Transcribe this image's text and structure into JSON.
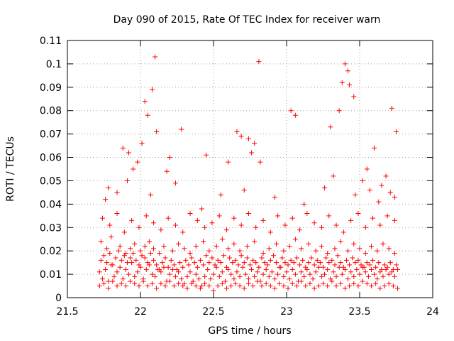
{
  "chart_data": {
    "type": "scatter",
    "title": "Day 090 of 2015, Rate Of TEC Index for receiver warn",
    "xlabel": "GPS time / hours",
    "ylabel": "ROTI / TECUs",
    "xlim": [
      21.5,
      24
    ],
    "ylim": [
      0,
      0.11
    ],
    "x_ticks": [
      {
        "value": 21.5,
        "label": "21.5"
      },
      {
        "value": 22,
        "label": "22"
      },
      {
        "value": 22.5,
        "label": "22.5"
      },
      {
        "value": 23,
        "label": "23"
      },
      {
        "value": 23.5,
        "label": "23.5"
      },
      {
        "value": 24,
        "label": "24"
      }
    ],
    "y_ticks": [
      {
        "value": 0,
        "label": "0"
      },
      {
        "value": 0.01,
        "label": "0.01"
      },
      {
        "value": 0.02,
        "label": "0.02"
      },
      {
        "value": 0.03,
        "label": "0.03"
      },
      {
        "value": 0.04,
        "label": "0.04"
      },
      {
        "value": 0.05,
        "label": "0.05"
      },
      {
        "value": 0.06,
        "label": "0.06"
      },
      {
        "value": 0.07,
        "label": "0.07"
      },
      {
        "value": 0.08,
        "label": "0.08"
      },
      {
        "value": 0.09,
        "label": "0.09"
      },
      {
        "value": 0.1,
        "label": "0.1"
      },
      {
        "value": 0.11,
        "label": "0.11"
      }
    ],
    "grid": true,
    "marker": "plus",
    "color": "#ff0000",
    "series": [
      {
        "name": "ROTI",
        "x": [
          21.72,
          21.74,
          21.76,
          21.78,
          21.8,
          21.82,
          21.84,
          21.86,
          21.88,
          21.9,
          21.92,
          21.94,
          21.96,
          21.98,
          22.0,
          22.02,
          22.04,
          22.06,
          22.08,
          22.1,
          22.12,
          22.14,
          22.16,
          22.18,
          22.2,
          22.22,
          22.24,
          22.26,
          22.28,
          22.3,
          22.32,
          22.34,
          22.36,
          22.38,
          22.4,
          22.42,
          22.44,
          22.46,
          22.48,
          22.5,
          22.52,
          22.54,
          22.56,
          22.58,
          22.6,
          22.62,
          22.64,
          22.66,
          22.68,
          22.7,
          22.72,
          22.74,
          22.76,
          22.78,
          22.8,
          22.82,
          22.84,
          22.86,
          22.88,
          22.9,
          22.92,
          22.94,
          22.96,
          22.98,
          23.0,
          23.02,
          23.04,
          23.06,
          23.08,
          23.1,
          23.12,
          23.14,
          23.16,
          23.18,
          23.2,
          23.22,
          23.24,
          23.26,
          23.28,
          23.3,
          23.32,
          23.34,
          23.36,
          23.38,
          23.4,
          23.42,
          23.44,
          23.46,
          23.48,
          23.5,
          23.52,
          23.54,
          23.56,
          23.58,
          23.6,
          23.62,
          23.64,
          23.66,
          23.68,
          23.7,
          23.72,
          23.74,
          23.76,
          21.73,
          21.75,
          21.77,
          21.79,
          21.81,
          21.83,
          21.85,
          21.87,
          21.89,
          21.91,
          21.93,
          21.95,
          21.97,
          21.99,
          22.01,
          22.03,
          22.05,
          22.07,
          22.09,
          22.11,
          22.13,
          22.15,
          22.17,
          22.19,
          22.21,
          22.23,
          22.25,
          22.27,
          22.29,
          22.31,
          22.33,
          22.35,
          22.37,
          22.39,
          22.41,
          22.43,
          22.45,
          22.47,
          22.49,
          22.51,
          22.53,
          22.55,
          22.57,
          22.59,
          22.61,
          22.63,
          22.65,
          22.67,
          22.69,
          22.71,
          22.73,
          22.75,
          22.77,
          22.79,
          22.81,
          22.83,
          22.85,
          22.87,
          22.89,
          22.91,
          22.93,
          22.95,
          22.97,
          22.99,
          23.01,
          23.03,
          23.05,
          23.07,
          23.09,
          23.11,
          23.13,
          23.15,
          23.17,
          23.19,
          23.21,
          23.23,
          23.25,
          23.27,
          23.29,
          23.31,
          23.33,
          23.35,
          23.37,
          23.39,
          23.41,
          23.43,
          23.45,
          23.47,
          23.49,
          23.51,
          23.53,
          23.55,
          23.57,
          23.59,
          23.61,
          23.63,
          23.65,
          23.67,
          23.69,
          23.71,
          23.73,
          23.75,
          21.72,
          21.75,
          21.78,
          21.81,
          21.84,
          21.87,
          21.9,
          21.93,
          21.96,
          21.99,
          22.02,
          22.05,
          22.08,
          22.11,
          22.14,
          22.17,
          22.2,
          22.23,
          22.26,
          22.29,
          22.32,
          22.35,
          22.38,
          22.41,
          22.44,
          22.47,
          22.5,
          22.53,
          22.56,
          22.59,
          22.62,
          22.65,
          22.68,
          22.71,
          22.74,
          22.77,
          22.8,
          22.83,
          22.86,
          22.89,
          22.92,
          22.95,
          22.98,
          23.01,
          23.04,
          23.07,
          23.1,
          23.13,
          23.16,
          23.19,
          23.22,
          23.25,
          23.28,
          23.31,
          23.34,
          23.37,
          23.4,
          23.43,
          23.46,
          23.49,
          23.52,
          23.55,
          23.58,
          23.61,
          23.64,
          23.67,
          23.7,
          23.73,
          23.76,
          21.73,
          21.77,
          21.8,
          21.86,
          21.9,
          21.93,
          21.96,
          22.0,
          22.03,
          22.06,
          22.09,
          22.13,
          22.16,
          22.22,
          22.26,
          22.3,
          22.34,
          22.38,
          22.43,
          22.47,
          22.52,
          22.56,
          22.6,
          22.64,
          22.68,
          22.73,
          22.78,
          22.84,
          22.88,
          22.93,
          22.98,
          23.02,
          23.06,
          23.1,
          23.15,
          23.2,
          23.24,
          23.28,
          23.33,
          23.37,
          23.42,
          23.46,
          23.5,
          23.54,
          23.58,
          23.62,
          23.66,
          23.7,
          23.74,
          21.74,
          21.79,
          21.84,
          21.89,
          21.94,
          21.99,
          22.04,
          22.09,
          22.14,
          22.19,
          22.24,
          22.29,
          22.34,
          22.39,
          22.44,
          22.49,
          22.54,
          22.59,
          22.64,
          22.69,
          22.74,
          22.79,
          22.84,
          22.89,
          22.94,
          22.99,
          23.04,
          23.09,
          23.14,
          23.19,
          23.24,
          23.29,
          23.34,
          23.39,
          23.44,
          23.49,
          23.54,
          23.59,
          23.64,
          23.69,
          23.74,
          21.78,
          21.88,
          21.92,
          21.95,
          21.98,
          22.01,
          22.03,
          22.05,
          22.08,
          22.1,
          22.11,
          22.2,
          22.28,
          22.45,
          22.6,
          22.66,
          22.69,
          22.74,
          22.76,
          22.78,
          22.81,
          22.82,
          23.03,
          23.06,
          23.3,
          23.36,
          23.38,
          23.4,
          23.42,
          23.43,
          23.46,
          23.55,
          23.6,
          23.68,
          23.72,
          23.75,
          21.76,
          21.84,
          21.91,
          22.07,
          22.18,
          22.24,
          22.42,
          22.55,
          22.71,
          22.92,
          23.12,
          23.26,
          23.32,
          23.47,
          23.52,
          23.57,
          23.63,
          23.65,
          23.71,
          23.74
        ],
        "y": [
          0.011,
          0.008,
          0.012,
          0.007,
          0.014,
          0.009,
          0.011,
          0.013,
          0.008,
          0.012,
          0.01,
          0.015,
          0.009,
          0.011,
          0.013,
          0.008,
          0.012,
          0.014,
          0.01,
          0.009,
          0.012,
          0.011,
          0.013,
          0.007,
          0.01,
          0.012,
          0.009,
          0.011,
          0.008,
          0.006,
          0.009,
          0.011,
          0.007,
          0.01,
          0.008,
          0.005,
          0.009,
          0.012,
          0.008,
          0.01,
          0.013,
          0.009,
          0.011,
          0.007,
          0.012,
          0.01,
          0.008,
          0.011,
          0.009,
          0.013,
          0.01,
          0.008,
          0.012,
          0.009,
          0.011,
          0.007,
          0.01,
          0.012,
          0.009,
          0.011,
          0.008,
          0.01,
          0.013,
          0.009,
          0.011,
          0.008,
          0.012,
          0.01,
          0.007,
          0.011,
          0.009,
          0.012,
          0.01,
          0.008,
          0.011,
          0.013,
          0.009,
          0.01,
          0.012,
          0.008,
          0.011,
          0.009,
          0.013,
          0.01,
          0.012,
          0.008,
          0.011,
          0.009,
          0.012,
          0.01,
          0.013,
          0.011,
          0.009,
          0.012,
          0.01,
          0.008,
          0.011,
          0.009,
          0.012,
          0.01,
          0.011,
          0.009,
          0.012,
          0.016,
          0.018,
          0.015,
          0.019,
          0.014,
          0.017,
          0.02,
          0.016,
          0.018,
          0.015,
          0.017,
          0.019,
          0.016,
          0.014,
          0.018,
          0.017,
          0.015,
          0.019,
          0.016,
          0.014,
          0.012,
          0.015,
          0.017,
          0.013,
          0.016,
          0.014,
          0.012,
          0.015,
          0.013,
          0.016,
          0.014,
          0.017,
          0.015,
          0.013,
          0.016,
          0.014,
          0.018,
          0.015,
          0.017,
          0.014,
          0.016,
          0.015,
          0.018,
          0.013,
          0.017,
          0.015,
          0.016,
          0.014,
          0.018,
          0.015,
          0.017,
          0.014,
          0.016,
          0.015,
          0.013,
          0.017,
          0.015,
          0.014,
          0.016,
          0.018,
          0.015,
          0.013,
          0.017,
          0.015,
          0.014,
          0.016,
          0.015,
          0.017,
          0.014,
          0.016,
          0.013,
          0.015,
          0.017,
          0.014,
          0.016,
          0.015,
          0.013,
          0.017,
          0.015,
          0.016,
          0.014,
          0.018,
          0.015,
          0.013,
          0.016,
          0.014,
          0.017,
          0.015,
          0.016,
          0.014,
          0.013,
          0.015,
          0.014,
          0.016,
          0.013,
          0.015,
          0.012,
          0.014,
          0.013,
          0.015,
          0.012,
          0.014,
          0.005,
          0.006,
          0.004,
          0.007,
          0.005,
          0.006,
          0.005,
          0.007,
          0.006,
          0.005,
          0.007,
          0.005,
          0.006,
          0.004,
          0.006,
          0.005,
          0.007,
          0.005,
          0.006,
          0.005,
          0.004,
          0.006,
          0.005,
          0.004,
          0.006,
          0.005,
          0.003,
          0.005,
          0.006,
          0.004,
          0.005,
          0.006,
          0.005,
          0.004,
          0.006,
          0.005,
          0.007,
          0.005,
          0.006,
          0.005,
          0.004,
          0.006,
          0.005,
          0.004,
          0.006,
          0.005,
          0.007,
          0.005,
          0.006,
          0.004,
          0.005,
          0.006,
          0.005,
          0.007,
          0.005,
          0.006,
          0.004,
          0.005,
          0.006,
          0.005,
          0.007,
          0.006,
          0.005,
          0.006,
          0.004,
          0.005,
          0.006,
          0.005,
          0.004,
          0.024,
          0.021,
          0.026,
          0.022,
          0.019,
          0.021,
          0.023,
          0.02,
          0.022,
          0.024,
          0.021,
          0.019,
          0.022,
          0.02,
          0.023,
          0.021,
          0.019,
          0.022,
          0.024,
          0.02,
          0.022,
          0.025,
          0.021,
          0.023,
          0.02,
          0.022,
          0.024,
          0.019,
          0.021,
          0.023,
          0.02,
          0.022,
          0.025,
          0.021,
          0.023,
          0.02,
          0.022,
          0.019,
          0.021,
          0.024,
          0.02,
          0.023,
          0.021,
          0.019,
          0.022,
          0.02,
          0.023,
          0.021,
          0.019,
          0.034,
          0.031,
          0.036,
          0.028,
          0.033,
          0.03,
          0.035,
          0.032,
          0.029,
          0.034,
          0.031,
          0.028,
          0.036,
          0.033,
          0.03,
          0.032,
          0.035,
          0.029,
          0.034,
          0.031,
          0.036,
          0.03,
          0.033,
          0.028,
          0.035,
          0.031,
          0.034,
          0.029,
          0.036,
          0.032,
          0.03,
          0.035,
          0.031,
          0.028,
          0.033,
          0.036,
          0.03,
          0.034,
          0.031,
          0.035,
          0.033,
          0.047,
          0.064,
          0.062,
          0.055,
          0.058,
          0.066,
          0.084,
          0.078,
          0.089,
          0.103,
          0.071,
          0.06,
          0.072,
          0.061,
          0.058,
          0.071,
          0.069,
          0.068,
          0.062,
          0.066,
          0.101,
          0.058,
          0.08,
          0.078,
          0.073,
          0.08,
          0.092,
          0.1,
          0.097,
          0.091,
          0.086,
          0.055,
          0.064,
          0.052,
          0.081,
          0.071,
          0.042,
          0.045,
          0.05,
          0.044,
          0.054,
          0.049,
          0.038,
          0.044,
          0.046,
          0.043,
          0.04,
          0.047,
          0.052,
          0.044,
          0.05,
          0.046,
          0.041,
          0.048,
          0.045,
          0.043
        ]
      }
    ]
  }
}
